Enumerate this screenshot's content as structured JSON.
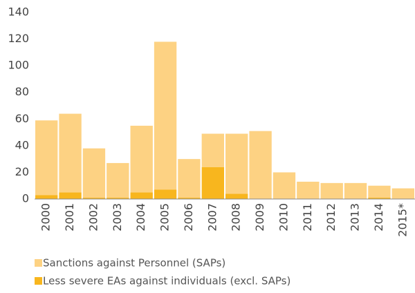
{
  "chart_data": {
    "type": "bar",
    "stacked": true,
    "categories": [
      "2000",
      "2001",
      "2002",
      "2003",
      "2004",
      "2005",
      "2006",
      "2007",
      "2008",
      "2009",
      "2010",
      "2011",
      "2012",
      "2013",
      "2014",
      "2015*"
    ],
    "series": [
      {
        "name": "Sanctions against Personnel (SAPs)",
        "color": "#fdd283",
        "values": [
          56,
          59,
          37,
          26,
          50,
          111,
          29,
          25,
          45,
          51,
          20,
          13,
          12,
          12,
          9,
          8
        ]
      },
      {
        "name": "Less severe EAs against individuals (excl. SAPs)",
        "color": "#f8b61e",
        "values": [
          3,
          5,
          1,
          1,
          5,
          7,
          1,
          24,
          4,
          0,
          0,
          0,
          0,
          0,
          1,
          0
        ]
      }
    ],
    "ylim": [
      0,
      140
    ],
    "yticks": [
      0,
      20,
      40,
      60,
      80,
      100,
      120,
      140
    ]
  }
}
